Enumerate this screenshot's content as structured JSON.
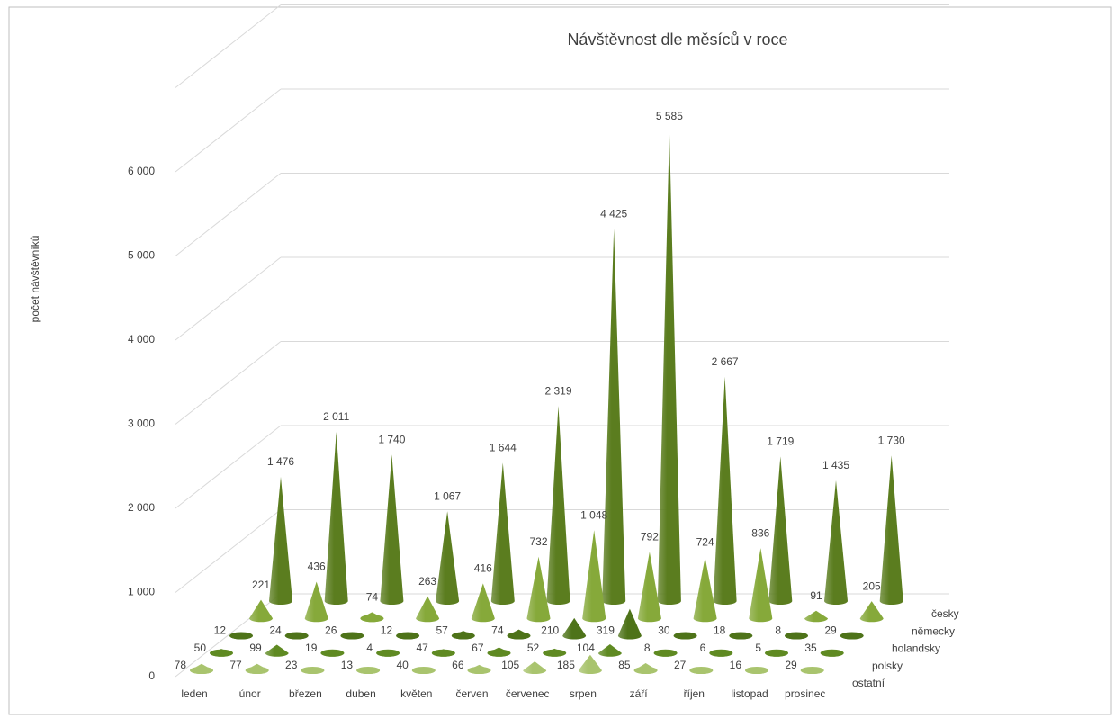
{
  "chart_data": {
    "type": "cone3d",
    "title": "Návštěvnost dle měsíců v roce",
    "y_label": "počet návštěvníků",
    "categories": [
      "leden",
      "únor",
      "březen",
      "duben",
      "květen",
      "červen",
      "červenec",
      "srpen",
      "září",
      "říjen",
      "listopad",
      "prosinec"
    ],
    "ylim": [
      0,
      7000
    ],
    "yticks": [
      0,
      {
        "value": 1000,
        "label": "1 000"
      },
      {
        "value": 2000,
        "label": "2 000"
      },
      {
        "value": 3000,
        "label": "3 000"
      },
      {
        "value": 4000,
        "label": "4 000"
      },
      {
        "value": 5000,
        "label": "5 000"
      },
      {
        "value": 6000,
        "label": "6 000"
      }
    ],
    "grid": true,
    "series": [
      {
        "name": "česky",
        "color": "#5b7d1f",
        "values": [
          1476,
          2011,
          1740,
          1067,
          1644,
          2319,
          4425,
          5585,
          2667,
          1719,
          1435,
          1730
        ],
        "value_labels": [
          "1 476",
          "2 011",
          "1 740",
          "1 067",
          "1 644",
          "2 319",
          "4 425",
          "5 585",
          "2 667",
          "1 719",
          "1 435",
          "1 730"
        ]
      },
      {
        "name": "německy",
        "color": "#86a93a",
        "values": [
          221,
          436,
          74,
          263,
          416,
          732,
          1048,
          792,
          724,
          836,
          91,
          205
        ],
        "value_labels": [
          "221",
          "436",
          "74",
          "263",
          "416",
          "732",
          "1 048",
          "792",
          "724",
          "836",
          "91",
          "205"
        ]
      },
      {
        "name": "holandsky",
        "color": "#4e7319",
        "values": [
          12,
          24,
          26,
          12,
          57,
          74,
          210,
          319,
          30,
          18,
          8,
          29
        ]
      },
      {
        "name": "polsky",
        "color": "#5f8a22",
        "values": [
          50,
          99,
          19,
          4,
          47,
          67,
          52,
          104,
          8,
          6,
          5,
          35
        ]
      },
      {
        "name": "ostatní",
        "color": "#a9c46e",
        "values": [
          78,
          77,
          23,
          13,
          40,
          66,
          105,
          185,
          85,
          27,
          16,
          29
        ]
      }
    ]
  }
}
